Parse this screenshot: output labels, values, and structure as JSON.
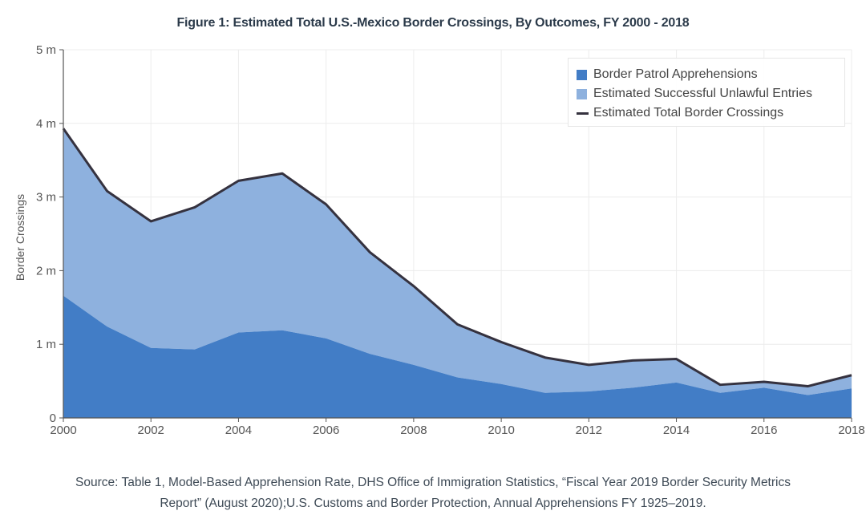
{
  "title": "Figure 1: Estimated Total U.S.-Mexico Border Crossings, By Outcomes, FY 2000 - 2018",
  "source_line1": "Source: Table 1, Model-Based Apprehension Rate, DHS Office of Immigration Statistics, “Fiscal Year 2019 Border Security Metrics",
  "source_line2": "Report” (August 2020);U.S. Customs and Border Protection, Annual Apprehensions FY 1925–2019.",
  "colors": {
    "apprehensions": "#427dc6",
    "unlawful_entries": "#8eb1de",
    "total_line": "#35323f",
    "grid": "#ececec",
    "axis": "#555555"
  },
  "chart_data": {
    "type": "area",
    "title": "Figure 1: Estimated Total U.S.-Mexico Border Crossings, By Outcomes, FY 2000 - 2018",
    "xlabel": "",
    "ylabel": "Border Crossings",
    "x": [
      2000,
      2001,
      2002,
      2003,
      2004,
      2005,
      2006,
      2007,
      2008,
      2009,
      2010,
      2011,
      2012,
      2013,
      2014,
      2015,
      2016,
      2017,
      2018
    ],
    "xlim": [
      2000,
      2018
    ],
    "ylim": [
      0,
      5000000
    ],
    "x_ticks": [
      "2000",
      "2002",
      "2004",
      "2006",
      "2008",
      "2010",
      "2012",
      "2014",
      "2016",
      "2018"
    ],
    "x_tick_values": [
      2000,
      2002,
      2004,
      2006,
      2008,
      2010,
      2012,
      2014,
      2016,
      2018
    ],
    "y_ticks": [
      "0",
      "1 m",
      "2 m",
      "3 m",
      "4 m",
      "5 m"
    ],
    "y_tick_values": [
      0,
      1000000,
      2000000,
      3000000,
      4000000,
      5000000
    ],
    "grid": true,
    "legend_position": "top-right",
    "series": [
      {
        "name": "Border Patrol Apprehensions",
        "kind": "stacked-area",
        "values": [
          1660000,
          1240000,
          950000,
          930000,
          1160000,
          1190000,
          1080000,
          870000,
          720000,
          550000,
          460000,
          340000,
          360000,
          410000,
          480000,
          340000,
          410000,
          310000,
          400000
        ]
      },
      {
        "name": "Estimated Successful Unlawful Entries",
        "kind": "stacked-area",
        "values": [
          2270000,
          1840000,
          1720000,
          1930000,
          2060000,
          2130000,
          1820000,
          1380000,
          1070000,
          720000,
          570000,
          480000,
          360000,
          370000,
          320000,
          110000,
          80000,
          120000,
          180000
        ]
      },
      {
        "name": "Estimated Total Border Crossings",
        "kind": "line",
        "values": [
          3930000,
          3080000,
          2670000,
          2860000,
          3220000,
          3320000,
          2900000,
          2250000,
          1790000,
          1270000,
          1030000,
          820000,
          720000,
          780000,
          800000,
          450000,
          490000,
          430000,
          580000
        ]
      }
    ]
  }
}
